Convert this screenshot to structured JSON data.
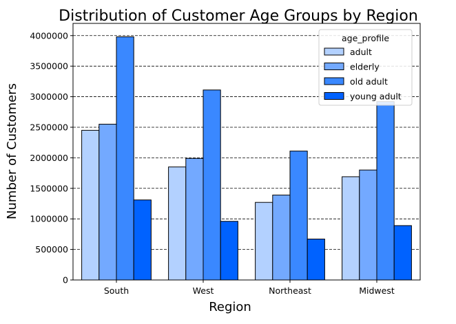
{
  "chart_data": {
    "type": "bar",
    "title": "Distribution of Customer Age Groups by Region",
    "xlabel": "Region",
    "ylabel": "Number of Customers",
    "categories": [
      "South",
      "West",
      "Northeast",
      "Midwest"
    ],
    "ylim": [
      0,
      4200000
    ],
    "yticks": [
      0,
      500000,
      1000000,
      1500000,
      2000000,
      2500000,
      3000000,
      3500000,
      4000000
    ],
    "grid": "y-dashed",
    "legend": {
      "title": "age_profile",
      "placement": "top-right"
    },
    "series": [
      {
        "name": "adult",
        "color": "#b3d1ff",
        "values": [
          2450000,
          1850000,
          1270000,
          1690000
        ]
      },
      {
        "name": "elderly",
        "color": "#73a9ff",
        "values": [
          2550000,
          1990000,
          1390000,
          1800000
        ]
      },
      {
        "name": "old adult",
        "color": "#3a88ff",
        "values": [
          3980000,
          3110000,
          2110000,
          2920000
        ]
      },
      {
        "name": "young adult",
        "color": "#0062ff",
        "values": [
          1310000,
          960000,
          670000,
          890000
        ]
      }
    ]
  }
}
